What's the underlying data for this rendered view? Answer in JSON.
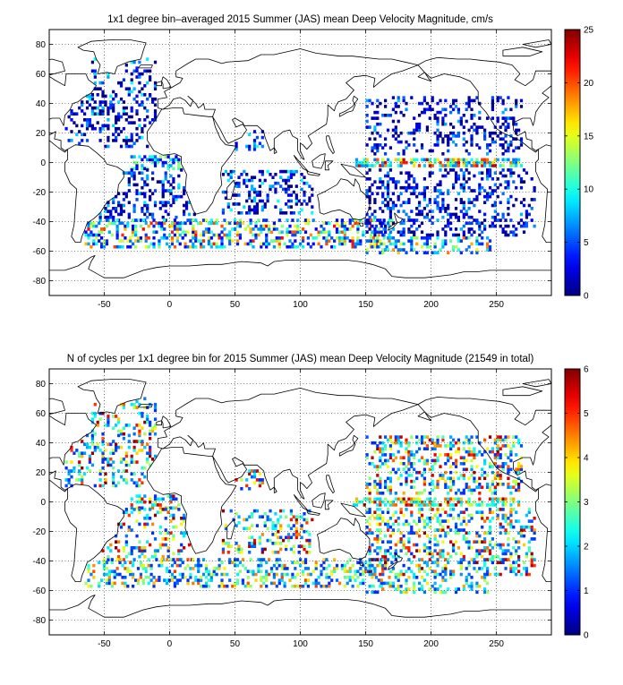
{
  "chart_data": [
    {
      "type": "heatmap",
      "title": "1x1 degree bin–averaged 2015 Summer (JAS) mean Deep Velocity Magnitude, cm/s",
      "xlabel": "",
      "ylabel": "",
      "xlim": [
        -92,
        292
      ],
      "ylim": [
        -90,
        90
      ],
      "x_ticks": [
        -50,
        0,
        50,
        100,
        150,
        200,
        250
      ],
      "y_ticks": [
        -80,
        -60,
        -40,
        -20,
        0,
        20,
        40,
        60,
        80
      ],
      "grid": true,
      "grid_style": "dotted",
      "colormap": "jet",
      "colorbar": {
        "min": 0,
        "max": 25,
        "ticks": [
          0,
          5,
          10,
          15,
          20,
          25
        ]
      },
      "seed": 11,
      "bands": [
        {
          "lon": [
            -80,
            -10
          ],
          "lat": [
            10,
            45
          ],
          "density": 0.3,
          "vmin": 0,
          "vmax": 10
        },
        {
          "lon": [
            -60,
            -10
          ],
          "lat": [
            45,
            70
          ],
          "density": 0.25,
          "vmin": 0,
          "vmax": 10
        },
        {
          "lon": [
            -30,
            10
          ],
          "lat": [
            -5,
            5
          ],
          "density": 0.45,
          "vmin": 2,
          "vmax": 14
        },
        {
          "lon": [
            -60,
            20
          ],
          "lat": [
            -40,
            -5
          ],
          "density": 0.3,
          "vmin": 0,
          "vmax": 9
        },
        {
          "lon": [
            -65,
            170
          ],
          "lat": [
            -58,
            -38
          ],
          "density": 0.4,
          "vmin": 3,
          "vmax": 22
        },
        {
          "lon": [
            40,
            110
          ],
          "lat": [
            -35,
            -5
          ],
          "density": 0.3,
          "vmin": 0,
          "vmax": 10
        },
        {
          "lon": [
            50,
            72
          ],
          "lat": [
            8,
            22
          ],
          "density": 0.3,
          "vmin": 2,
          "vmax": 12
        },
        {
          "lon": [
            140,
            270
          ],
          "lat": [
            -3,
            3
          ],
          "density": 0.65,
          "vmin": 6,
          "vmax": 24
        },
        {
          "lon": [
            150,
            270
          ],
          "lat": [
            5,
            45
          ],
          "density": 0.25,
          "vmin": 0,
          "vmax": 8
        },
        {
          "lon": [
            150,
            280
          ],
          "lat": [
            -50,
            -5
          ],
          "density": 0.3,
          "vmin": 0,
          "vmax": 8
        },
        {
          "lon": [
            150,
            245
          ],
          "lat": [
            -62,
            -50
          ],
          "density": 0.35,
          "vmin": 4,
          "vmax": 20
        }
      ]
    },
    {
      "type": "heatmap",
      "title": "N of cycles per 1x1 degree bin for 2015 Summer (JAS) mean Deep Velocity Magnitude (21549 in total)",
      "xlabel": "",
      "ylabel": "",
      "xlim": [
        -92,
        292
      ],
      "ylim": [
        -90,
        90
      ],
      "x_ticks": [
        -50,
        0,
        50,
        100,
        150,
        200,
        250
      ],
      "y_ticks": [
        -80,
        -60,
        -40,
        -20,
        0,
        20,
        40,
        60,
        80
      ],
      "grid": true,
      "grid_style": "dotted",
      "colormap": "jet",
      "colorbar": {
        "min": 0,
        "max": 6,
        "ticks": [
          0,
          1,
          2,
          3,
          4,
          5,
          6
        ]
      },
      "seed": 29,
      "bands": [
        {
          "lon": [
            -80,
            -10
          ],
          "lat": [
            10,
            45
          ],
          "density": 0.3,
          "vmin": 1,
          "vmax": 6
        },
        {
          "lon": [
            -60,
            -10
          ],
          "lat": [
            45,
            70
          ],
          "density": 0.3,
          "vmin": 1,
          "vmax": 6
        },
        {
          "lon": [
            -30,
            10
          ],
          "lat": [
            -5,
            5
          ],
          "density": 0.4,
          "vmin": 1,
          "vmax": 6
        },
        {
          "lon": [
            -60,
            20
          ],
          "lat": [
            -40,
            -5
          ],
          "density": 0.25,
          "vmin": 1,
          "vmax": 6
        },
        {
          "lon": [
            -65,
            170
          ],
          "lat": [
            -58,
            -38
          ],
          "density": 0.35,
          "vmin": 1,
          "vmax": 5
        },
        {
          "lon": [
            40,
            110
          ],
          "lat": [
            -35,
            -5
          ],
          "density": 0.3,
          "vmin": 1,
          "vmax": 6
        },
        {
          "lon": [
            50,
            72
          ],
          "lat": [
            8,
            22
          ],
          "density": 0.3,
          "vmin": 1,
          "vmax": 6
        },
        {
          "lon": [
            140,
            270
          ],
          "lat": [
            -3,
            3
          ],
          "density": 0.6,
          "vmin": 2,
          "vmax": 6
        },
        {
          "lon": [
            150,
            270
          ],
          "lat": [
            5,
            45
          ],
          "density": 0.35,
          "vmin": 1,
          "vmax": 6
        },
        {
          "lon": [
            150,
            280
          ],
          "lat": [
            -50,
            -5
          ],
          "density": 0.35,
          "vmin": 1,
          "vmax": 6
        },
        {
          "lon": [
            150,
            245
          ],
          "lat": [
            -62,
            -50
          ],
          "density": 0.3,
          "vmin": 1,
          "vmax": 5
        }
      ]
    }
  ]
}
